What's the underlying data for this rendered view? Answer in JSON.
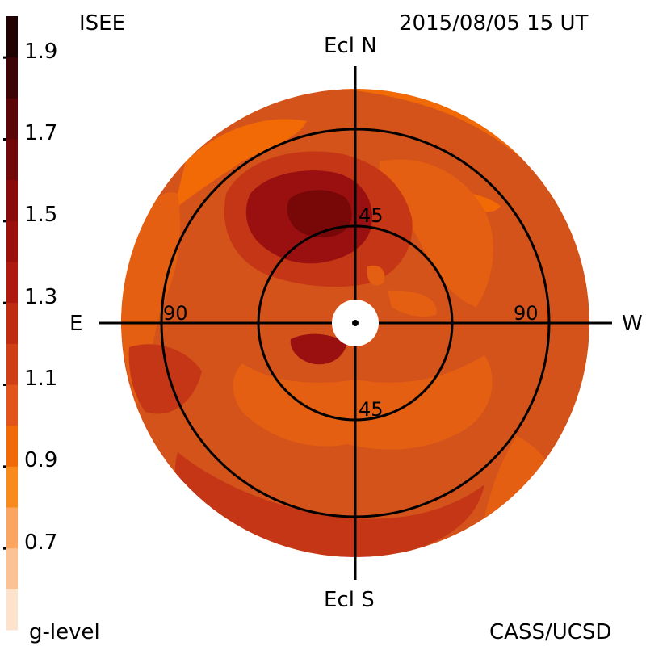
{
  "header": {
    "observatory": "ISEE",
    "timestamp": "2015/08/05 15 UT"
  },
  "footer": {
    "colorbar_label": "g-level",
    "credit": "CASS/UCSD"
  },
  "map": {
    "directions": {
      "north": "Ecl N",
      "south": "Ecl S",
      "east": "E",
      "west": "W"
    },
    "rings": [
      {
        "elongation": 45,
        "label_top": "45",
        "label_bottom": "45"
      },
      {
        "elongation": 90,
        "label_left": "90",
        "label_right": "90"
      }
    ],
    "colors": {
      "disk_base": "#d4531a",
      "deep": "#9a1010",
      "darkest": "#780808",
      "mid": "#c43616",
      "light": "#e45f12",
      "orange": "#f26a06",
      "sun_occulter": "#ffffff",
      "grid": "#000000"
    }
  },
  "colorbar": {
    "ticks": [
      "1.9",
      "1.7",
      "1.5",
      "1.3",
      "1.1",
      "0.9",
      "0.7"
    ],
    "tick_values": [
      1.9,
      1.7,
      1.5,
      1.3,
      1.1,
      0.9,
      0.7
    ],
    "range": [
      0.5,
      2.0
    ],
    "bands": [
      {
        "from": 0.5,
        "to": 0.6,
        "color": "#fde2cc"
      },
      {
        "from": 0.6,
        "to": 0.7,
        "color": "#fbc394"
      },
      {
        "from": 0.7,
        "to": 0.8,
        "color": "#fba660"
      },
      {
        "from": 0.8,
        "to": 0.9,
        "color": "#f98a1c"
      },
      {
        "from": 0.9,
        "to": 1.0,
        "color": "#f06a08"
      },
      {
        "from": 1.0,
        "to": 1.1,
        "color": "#e2541a"
      },
      {
        "from": 1.1,
        "to": 1.2,
        "color": "#cf3e14"
      },
      {
        "from": 1.2,
        "to": 1.3,
        "color": "#c02c12"
      },
      {
        "from": 1.3,
        "to": 1.4,
        "color": "#ae1a10"
      },
      {
        "from": 1.4,
        "to": 1.5,
        "color": "#9c100c"
      },
      {
        "from": 1.5,
        "to": 1.6,
        "color": "#8a0c0a"
      },
      {
        "from": 1.6,
        "to": 1.7,
        "color": "#720808"
      },
      {
        "from": 1.7,
        "to": 1.8,
        "color": "#5a0606"
      },
      {
        "from": 1.8,
        "to": 1.9,
        "color": "#3c0404"
      },
      {
        "from": 1.9,
        "to": 2.0,
        "color": "#200202"
      }
    ]
  }
}
